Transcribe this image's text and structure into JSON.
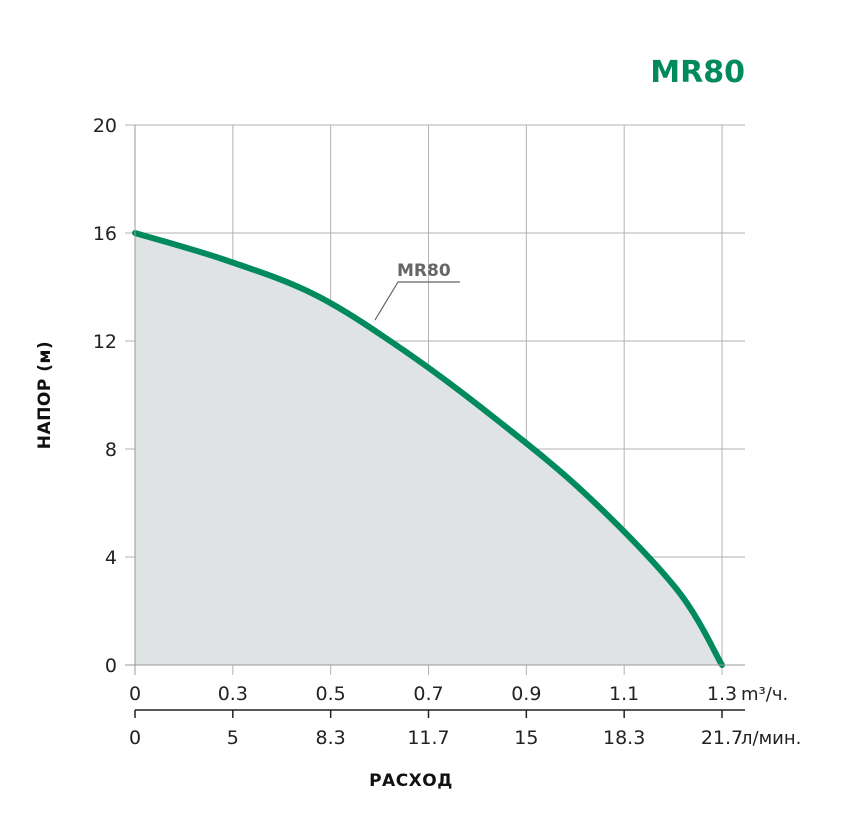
{
  "chart_data": {
    "type": "area",
    "title": "MR80",
    "ylabel": "НАПОР (м)",
    "xlabel": "РАСХОД",
    "ylim": [
      0,
      20
    ],
    "yticks": [
      "0",
      "4",
      "8",
      "12",
      "16",
      "20"
    ],
    "x_primary": {
      "unit": "m³/ч.",
      "range": [
        0,
        1.3
      ],
      "ticks": [
        0,
        0.3,
        0.5,
        0.7,
        0.9,
        1.1,
        1.3
      ],
      "labels": [
        "0",
        "0.3",
        "0.5",
        "0.7",
        "0.9",
        "1.1",
        "1.3"
      ]
    },
    "x_secondary": {
      "unit": "л/мин.",
      "labels": [
        "0",
        "5",
        "8.3",
        "11.7",
        "15",
        "18.3",
        "21.7"
      ]
    },
    "grid": true,
    "series": [
      {
        "name": "MR80",
        "x": [
          0,
          0.2,
          0.4,
          0.6,
          0.8,
          1.0,
          1.2,
          1.3
        ],
        "y": [
          16.0,
          15.0,
          13.7,
          11.6,
          9.1,
          6.3,
          2.8,
          0.0
        ]
      }
    ]
  },
  "colors": {
    "accent": "#008a5e",
    "fill": "#dfe3e4",
    "grid": "#b3b3b3",
    "text": "#222222"
  }
}
